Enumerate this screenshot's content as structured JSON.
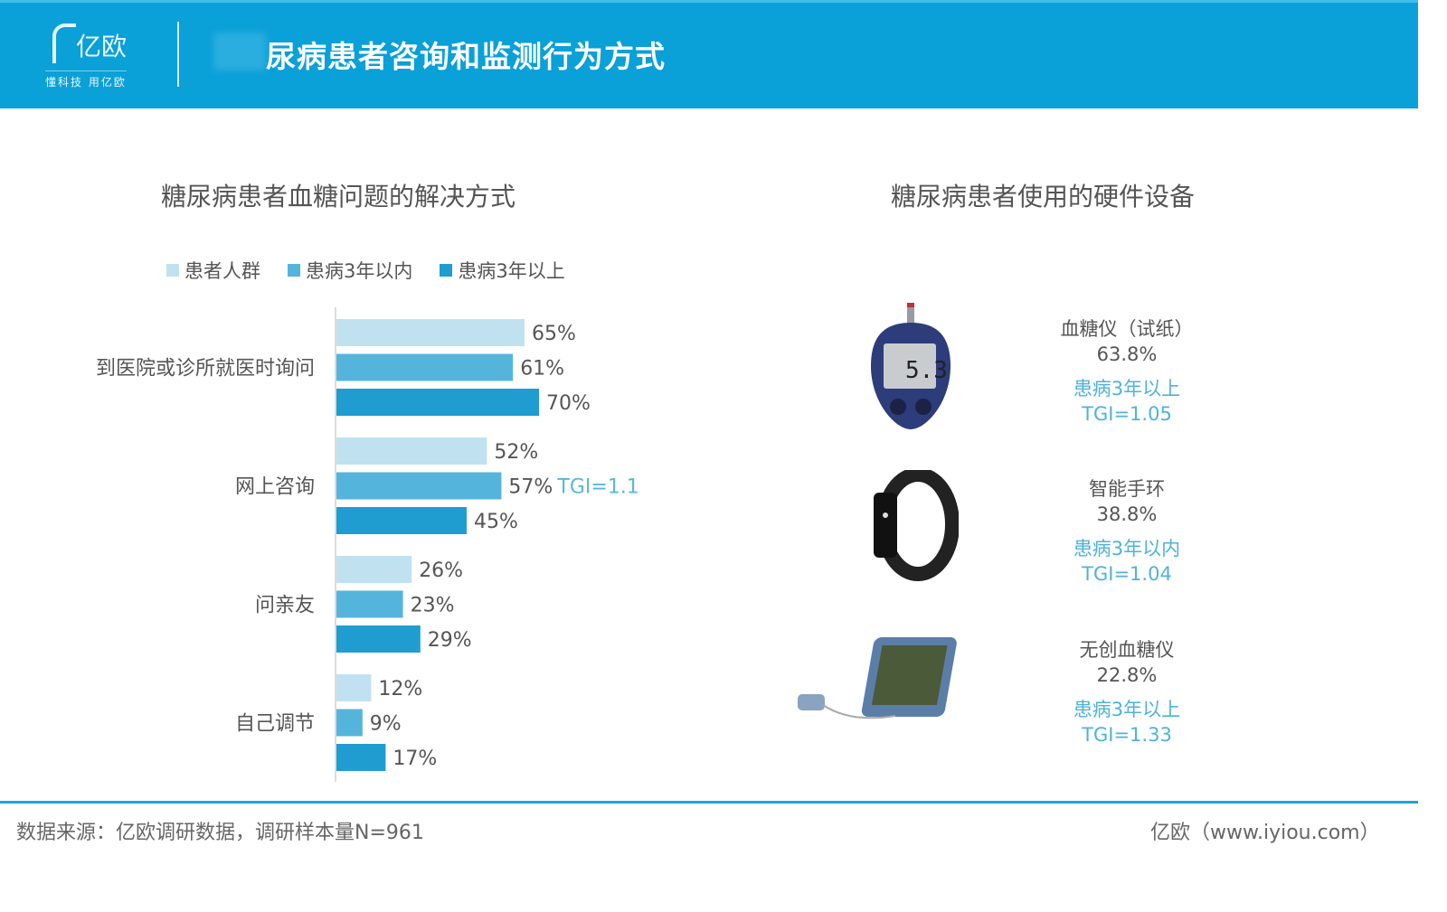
{
  "header": {
    "logo_text": "亿欧",
    "slogan": "懂科技 用亿欧",
    "title": "尿病患者咨询和监测行为方式"
  },
  "left": {
    "title": "糖尿病患者血糖问题的解决方式"
  },
  "right": {
    "title": "糖尿病患者使用的硬件设备",
    "devices": [
      {
        "name": "血糖仪（试纸）",
        "pct": "63.8%",
        "group": "患病3年以上",
        "tgi": "TGI=1.05",
        "icon": "glucose-meter"
      },
      {
        "name": "智能手环",
        "pct": "38.8%",
        "group": "患病3年以内",
        "tgi": "TGI=1.04",
        "icon": "smart-band"
      },
      {
        "name": "无创血糖仪",
        "pct": "22.8%",
        "group": "患病3年以上",
        "tgi": "TGI=1.33",
        "icon": "noninvasive-glucose-monitor"
      }
    ]
  },
  "chart_data": {
    "type": "bar",
    "orientation": "horizontal",
    "title": "糖尿病患者血糖问题的解决方式",
    "categories": [
      "到医院或诊所就医时询问",
      "网上咨询",
      "问亲友",
      "自己调节"
    ],
    "series": [
      {
        "name": "患者人群",
        "color": "#c0e2f0",
        "values": [
          65,
          52,
          26,
          12
        ]
      },
      {
        "name": "患病3年以内",
        "color": "#55b4dc",
        "values": [
          61,
          57,
          23,
          9
        ]
      },
      {
        "name": "患病3年以上",
        "color": "#1f9dd0",
        "values": [
          70,
          45,
          29,
          17
        ]
      }
    ],
    "value_suffix": "%",
    "annotations": [
      {
        "category": "网上咨询",
        "series": "患病3年以内",
        "text": "TGI=1.1"
      }
    ],
    "legend": "top",
    "grid": false
  },
  "footer": {
    "source": "数据来源：亿欧调研数据，调研样本量N=961",
    "brand": "亿欧（www.iyiou.com）"
  },
  "colors": {
    "header": "#0aa0d8",
    "accent": "#4fb3d9"
  }
}
